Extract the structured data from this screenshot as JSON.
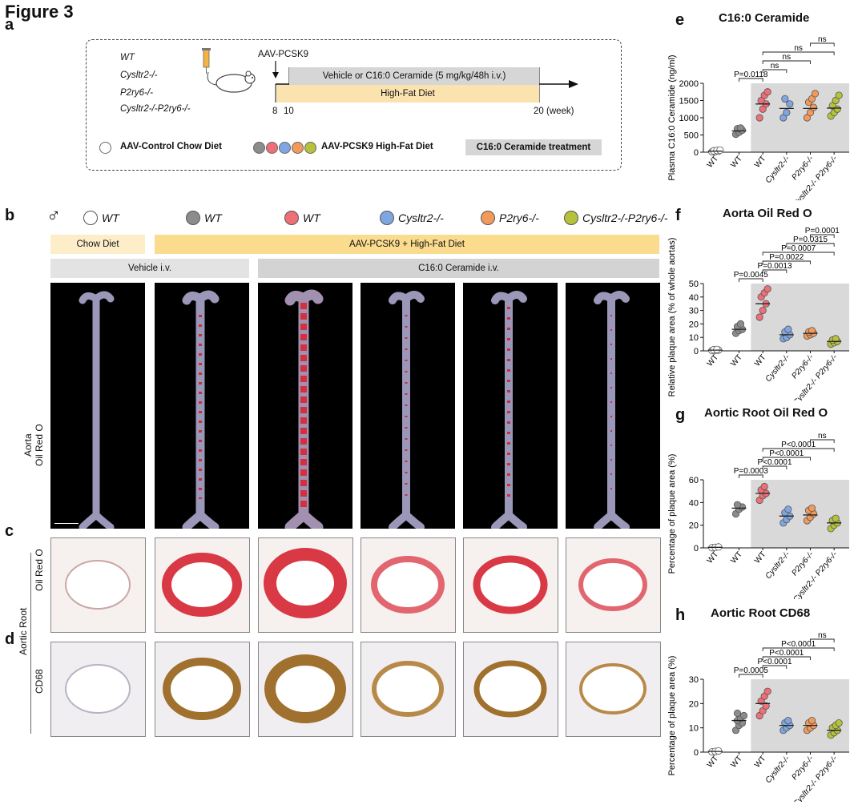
{
  "figure_title": "Figure 3",
  "panels": {
    "a": "a",
    "b": "b",
    "c": "c",
    "d": "d",
    "e": "e",
    "f": "f",
    "g": "g",
    "h": "h"
  },
  "schematic": {
    "genotypes": [
      "WT",
      "Cysltr2-/-",
      "P2ry6-/-",
      "Cysltr2-/-P2ry6-/-"
    ],
    "aav_label": "AAV-PCSK9",
    "vehicle_bar": "Vehicle or C16:0 Ceramide (5 mg/kg/48h i.v.)",
    "hfd_bar": "High-Fat Diet",
    "week_8": "8",
    "week_10": "10",
    "week_20": "20 (week)",
    "legend_control": "AAV-Control Chow Diet",
    "legend_pcsk9": "AAV-PCSK9 High-Fat Diet",
    "legend_treatment": "C16:0 Ceramide treatment"
  },
  "colors": {
    "white": "#ffffff",
    "grey": "#8c8c8c",
    "wt_pink": "#ee6f78",
    "cysltr2_blue": "#7fa6e0",
    "p2ry6_orange": "#f39a5a",
    "dko_green": "#b6c23a",
    "shade": "#d9d9d9",
    "chow": "#fdeec9",
    "hfd": "#fbdc8e"
  },
  "panel_b": {
    "male_symbol": "♂",
    "groups": [
      "WT",
      "WT",
      "WT",
      "Cysltr2-/-",
      "P2ry6-/-",
      "Cysltr2-/-P2ry6-/-"
    ],
    "chow_label": "Chow Diet",
    "hfd_label": "AAV-PCSK9 + High-Fat Diet",
    "vehicle_label": "Vehicle  i.v.",
    "ceramide_label": "C16:0 Ceramide  i.v.",
    "row_label_aorta_1": "Aorta",
    "row_label_aorta_2": "Oil Red O",
    "row_label_oro": "Oil Red O",
    "row_label_root": "Aortic Root",
    "row_label_cd68": "CD68"
  },
  "chart_data": [
    {
      "type": "scatter",
      "title": "C16:0 Ceramide",
      "ylabel": "Plasma C16:0 Ceramide (ng/ml)",
      "ylim": [
        0,
        2000
      ],
      "yticks": [
        0,
        500,
        1000,
        1500,
        2000
      ],
      "categories": [
        "WT",
        "WT",
        "WT",
        "Cysltr2-/-",
        "P2ry6-/-",
        "Cysltr2-/- P2ry6-/-"
      ],
      "means": [
        30,
        620,
        1400,
        1270,
        1270,
        1280
      ],
      "points": [
        [
          10,
          20,
          30,
          40,
          50,
          60
        ],
        [
          520,
          580,
          640,
          680,
          700
        ],
        [
          1000,
          1250,
          1400,
          1500,
          1650,
          1750
        ],
        [
          1000,
          1150,
          1400,
          1550
        ],
        [
          1000,
          1150,
          1300,
          1450,
          1550,
          1700
        ],
        [
          1050,
          1150,
          1250,
          1350,
          1500,
          1650
        ]
      ],
      "annotations": [
        "P=0.0118",
        "ns",
        "ns",
        "ns",
        "ns"
      ]
    },
    {
      "type": "scatter",
      "title": "Aorta Oil Red O",
      "ylabel": "Relative plaque area (% of whole aortas)",
      "ylim": [
        0,
        50
      ],
      "yticks": [
        0,
        10,
        20,
        30,
        40,
        50
      ],
      "categories": [
        "WT",
        "WT",
        "WT",
        "Cysltr2-/-",
        "P2ry6-/-",
        "Cysltr2-/- P2ry6-/-"
      ],
      "means": [
        0.5,
        16,
        35,
        12,
        13,
        7
      ],
      "points": [
        [
          0.2,
          0.4,
          0.6,
          0.8,
          1.0
        ],
        [
          13,
          15,
          16,
          18,
          20
        ],
        [
          25,
          30,
          35,
          40,
          43,
          46
        ],
        [
          9,
          10,
          12,
          14,
          16
        ],
        [
          11,
          12,
          13,
          14,
          15
        ],
        [
          5,
          6,
          7,
          8,
          9
        ]
      ],
      "annotations": [
        "P=0.0045",
        "P=0.0013",
        "P=0.0022",
        "P=0.0007",
        "P=0.0315",
        "P=0.0001"
      ]
    },
    {
      "type": "scatter",
      "title": "Aortic Root Oil Red O",
      "ylabel": "Percentage of plaque area (%)",
      "ylim": [
        0,
        60
      ],
      "yticks": [
        0,
        20,
        40,
        60
      ],
      "categories": [
        "WT",
        "WT",
        "WT",
        "Cysltr2-/-",
        "P2ry6-/-",
        "Cysltr2-/- P2ry6-/-"
      ],
      "means": [
        0.5,
        35,
        48,
        28,
        29,
        22
      ],
      "points": [
        [
          0.2,
          0.5,
          0.8
        ],
        [
          30,
          34,
          36,
          38
        ],
        [
          42,
          46,
          48,
          51,
          54
        ],
        [
          22,
          25,
          28,
          31,
          34
        ],
        [
          24,
          27,
          30,
          33,
          35
        ],
        [
          17,
          20,
          22,
          24,
          26
        ]
      ],
      "annotations": [
        "P=0.0003",
        "P<0.0001",
        "P<0.0001",
        "P<0.0001",
        "ns"
      ]
    },
    {
      "type": "scatter",
      "title": "Aortic Root CD68",
      "ylabel": "Percentage of plaque area (%)",
      "ylim": [
        0,
        30
      ],
      "yticks": [
        0,
        10,
        20,
        30
      ],
      "categories": [
        "WT",
        "WT",
        "WT",
        "Cysltr2-/-",
        "P2ry6-/-",
        "Cysltr2-/- P2ry6-/-"
      ],
      "means": [
        0.3,
        13,
        20,
        11,
        11,
        9
      ],
      "points": [
        [
          0.1,
          0.3,
          0.5
        ],
        [
          9,
          11,
          12,
          13,
          14,
          15,
          16
        ],
        [
          15,
          17,
          19,
          21,
          23,
          25
        ],
        [
          9,
          10,
          11,
          12,
          13
        ],
        [
          9,
          10,
          11,
          12,
          13
        ],
        [
          7,
          8,
          9,
          10,
          11,
          12
        ]
      ],
      "annotations": [
        "P=0.0005",
        "P<0.0001",
        "P<0.0001",
        "P<0.0001",
        "ns"
      ]
    }
  ]
}
